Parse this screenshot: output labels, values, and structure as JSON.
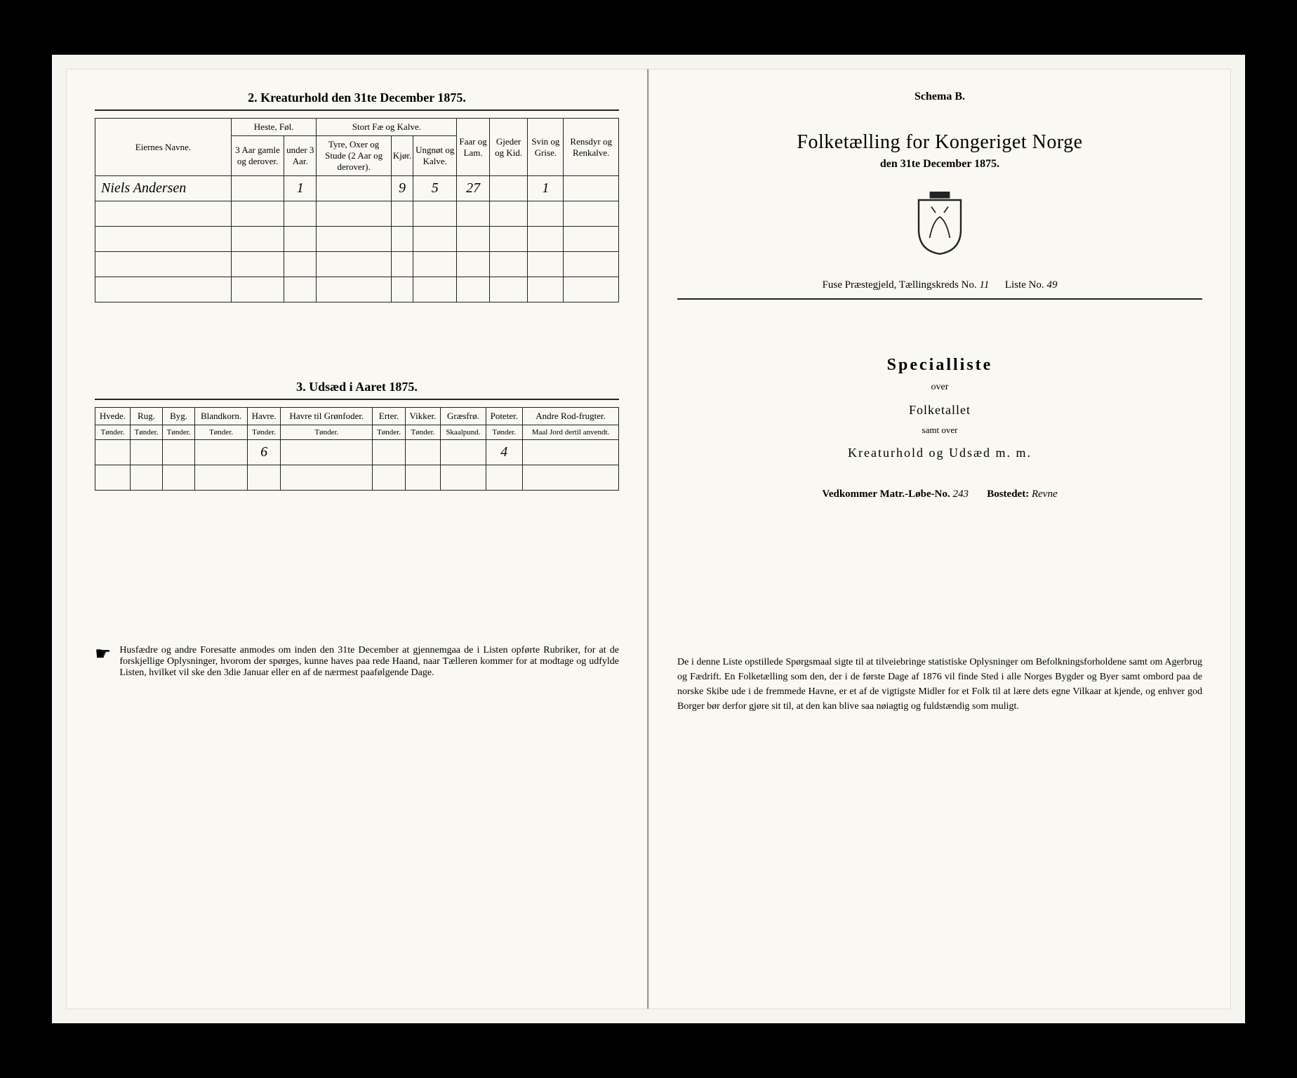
{
  "left": {
    "section2_title": "2. Kreaturhold den 31te December 1875.",
    "table2": {
      "col_owner": "Eiernes Navne.",
      "group_heste": "Heste, Føl.",
      "group_stort": "Stort Fæ og Kalve.",
      "sub_heste1": "3 Aar gamle og derover.",
      "sub_heste2": "under 3 Aar.",
      "sub_stort1": "Tyre, Oxer og Stude (2 Aar og derover).",
      "sub_stort2": "Kjør.",
      "sub_stort3": "Ungnøt og Kalve.",
      "col_faar": "Faar og Lam.",
      "col_gjeder": "Gjeder og Kid.",
      "col_svin": "Svin og Grise.",
      "col_rensdyr": "Rensdyr og Renkalve.",
      "row1": {
        "owner": "Niels Andersen",
        "heste1": "",
        "heste2": "1",
        "stort1": "",
        "stort2": "9",
        "stort3": "5",
        "faar": "27",
        "gjeder": "",
        "svin": "1",
        "rensdyr": ""
      }
    },
    "section3_title": "3. Udsæd i Aaret 1875.",
    "table3": {
      "cols": [
        {
          "h": "Hvede.",
          "u": "Tønder."
        },
        {
          "h": "Rug.",
          "u": "Tønder."
        },
        {
          "h": "Byg.",
          "u": "Tønder."
        },
        {
          "h": "Blandkorn.",
          "u": "Tønder."
        },
        {
          "h": "Havre.",
          "u": "Tønder."
        },
        {
          "h": "Havre til Grønfoder.",
          "u": "Tønder."
        },
        {
          "h": "Erter.",
          "u": "Tønder."
        },
        {
          "h": "Vikker.",
          "u": "Tønder."
        },
        {
          "h": "Græsfrø.",
          "u": "Skaalpund."
        },
        {
          "h": "Poteter.",
          "u": "Tønder."
        },
        {
          "h": "Andre Rod-frugter.",
          "u": "Maal Jord dertil anvendt."
        }
      ],
      "row1": [
        "",
        "",
        "",
        "",
        "6",
        "",
        "",
        "",
        "",
        "4",
        ""
      ]
    },
    "notice_text": "Husfædre og andre Foresatte anmodes om inden den 31te December at gjennemgaa de i Listen opførte Rubriker, for at de forskjellige Oplysninger, hvorom der spørges, kunne haves paa rede Haand, naar Tælleren kommer for at modtage og udfylde Listen, hvilket vil ske den 3die Januar eller en af de nærmest paafølgende Dage."
  },
  "right": {
    "schema": "Schema B.",
    "main_title": "Folketælling for Kongeriget Norge",
    "subtitle": "den 31te December 1875.",
    "meta_prefix": "Fuse Præstegjeld, Tællingskreds No.",
    "meta_kreds": "11",
    "meta_liste_label": "Liste No.",
    "meta_liste": "49",
    "special": "Specialliste",
    "over": "over",
    "folketallet": "Folketallet",
    "samt": "samt over",
    "kreatur": "Kreaturhold og Udsæd m. m.",
    "vedk_label": "Vedkommer Matr.-Løbe-No.",
    "vedk_no": "243",
    "bosted_label": "Bostedet:",
    "bosted": "Revne",
    "bottom": "De i denne Liste opstillede Spørgsmaal sigte til at tilveiebringe statistiske Oplysninger om Befolkningsforholdene samt om Agerbrug og Fædrift. En Folketælling som den, der i de første Dage af 1876 vil finde Sted i alle Norges Bygder og Byer samt ombord paa de norske Skibe ude i de fremmede Havne, er et af de vigtigste Midler for et Folk til at lære dets egne Vilkaar at kjende, og enhver god Borger bør derfor gjøre sit til, at den kan blive saa nøiagtig og fuldstændig som muligt."
  }
}
